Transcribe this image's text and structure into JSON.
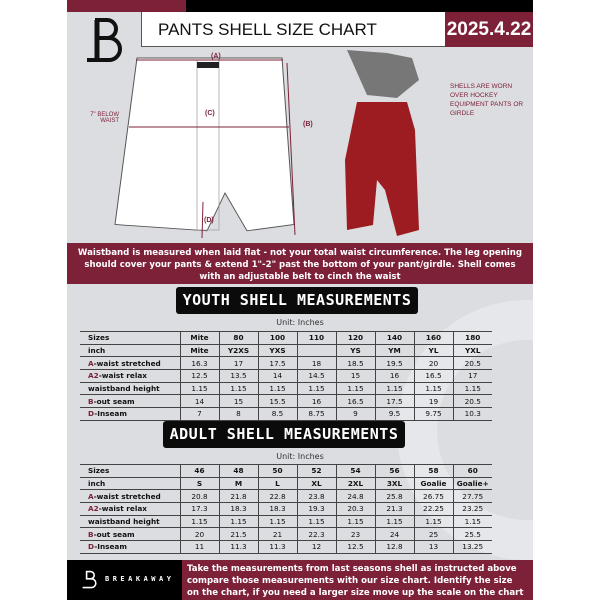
{
  "header": {
    "title": "PANTS SHELL SIZE CHART",
    "date": "2025.4.22"
  },
  "diagram": {
    "label_a": "(A)",
    "label_b": "(B)",
    "label_c": "(C)",
    "label_d": "(D)",
    "below_waist": "7\" BELOW WAIST",
    "note": "SHELLS ARE WORN OVER HOCKEY EQUIPMENT PANTS OR GIRDLE"
  },
  "info": "Waistband is measured when laid flat - not your total waist circumference. The leg opening should cover your pants & extend 1\"-2\" past the bottom of your pant/girdle. Shell comes with an adjustable belt to cinch the waist",
  "youth": {
    "title": "YOUTH SHELL MEASUREMENTS",
    "unit": "Unit: Inches",
    "rows": [
      {
        "label": "Sizes",
        "values": [
          "Mite",
          "80",
          "100",
          "110",
          "120",
          "140",
          "160",
          "180"
        ]
      },
      {
        "label": "inch",
        "values": [
          "Mite",
          "Y2XS",
          "YXS",
          "",
          "YS",
          "YM",
          "YL",
          "YXL"
        ]
      },
      {
        "prefix": "A",
        "label": "-waist stretched",
        "values": [
          "16.3",
          "17",
          "17.5",
          "18",
          "18.5",
          "19.5",
          "20",
          "20.5"
        ]
      },
      {
        "prefix": "A2",
        "label": "-waist relax",
        "values": [
          "12.5",
          "13.5",
          "14",
          "14.5",
          "15",
          "16",
          "16.5",
          "17"
        ]
      },
      {
        "label": "waistband height",
        "values": [
          "1.15",
          "1.15",
          "1.15",
          "1.15",
          "1.15",
          "1.15",
          "1.15",
          "1.15"
        ]
      },
      {
        "prefix": "B",
        "label": "-out seam",
        "values": [
          "14",
          "15",
          "15.5",
          "16",
          "16.5",
          "17.5",
          "19",
          "20.5"
        ]
      },
      {
        "prefix": "D",
        "label": "-Inseam",
        "values": [
          "7",
          "8",
          "8.5",
          "8.75",
          "9",
          "9.5",
          "9.75",
          "10.3"
        ]
      }
    ]
  },
  "adult": {
    "title": "ADULT SHELL MEASUREMENTS",
    "unit": "Unit: Inches",
    "rows": [
      {
        "label": "Sizes",
        "values": [
          "46",
          "48",
          "50",
          "52",
          "54",
          "56",
          "58",
          "60"
        ]
      },
      {
        "label": "inch",
        "values": [
          "S",
          "M",
          "L",
          "XL",
          "2XL",
          "3XL",
          "Goalie",
          "Goalie+"
        ]
      },
      {
        "prefix": "A",
        "label": "-waist stretched",
        "values": [
          "20.8",
          "21.8",
          "22.8",
          "23.8",
          "24.8",
          "25.8",
          "26.75",
          "27.75"
        ]
      },
      {
        "prefix": "A2",
        "label": "-waist relax",
        "values": [
          "17.3",
          "18.3",
          "18.3",
          "19.3",
          "20.3",
          "21.3",
          "22.25",
          "23.25"
        ]
      },
      {
        "label": "waistband height",
        "values": [
          "1.15",
          "1.15",
          "1.15",
          "1.15",
          "1.15",
          "1.15",
          "1.15",
          "1.15"
        ]
      },
      {
        "prefix": "B",
        "label": "-out seam",
        "values": [
          "20",
          "21.5",
          "21",
          "22.3",
          "23",
          "24",
          "25",
          "25.5"
        ]
      },
      {
        "prefix": "D",
        "label": "-Inseam",
        "values": [
          "11",
          "11.3",
          "11.3",
          "12",
          "12.5",
          "12.8",
          "13",
          "13.25"
        ]
      }
    ]
  },
  "footer": {
    "brand": "BREAKAWAY",
    "lines": [
      "Take the measurements from last seasons shell as instructed above",
      "compare those measurements  with our size chart. Identify the size",
      "on the chart, if you need a larger size move up the scale on the chart"
    ]
  },
  "colors": {
    "accent": "#7d2139",
    "background": "#dcdde1",
    "black": "#000000"
  }
}
